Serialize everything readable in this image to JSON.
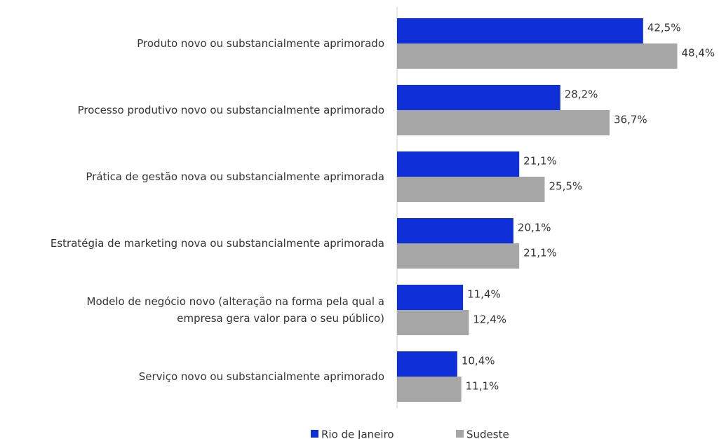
{
  "chart_data": {
    "type": "barh",
    "categories": [
      "Produto novo ou substancialmente aprimorado",
      "Processo produtivo novo ou substancialmente aprimorado",
      "Prática de gestão nova ou substancialmente aprimorada",
      "Estratégia de marketing nova ou substancialmente aprimorada",
      "Modelo de negócio novo (alteração na forma pela qual a\nempresa gera valor para o seu público)",
      "Serviço novo ou substancialmente aprimorado"
    ],
    "series": [
      {
        "name": "Rio de Janeiro",
        "color": "#0f2fd8",
        "values": [
          42.5,
          28.2,
          21.1,
          20.1,
          11.4,
          10.4
        ],
        "value_labels": [
          "42,5%",
          "28,2%",
          "21,1%",
          "20,1%",
          "11,4%",
          "10,4%"
        ]
      },
      {
        "name": "Sudeste",
        "color": "#a6a6a6",
        "values": [
          48.4,
          36.7,
          25.5,
          21.1,
          12.4,
          11.1
        ],
        "value_labels": [
          "48,4%",
          "36,7%",
          "25,5%",
          "21,1%",
          "12,4%",
          "11,1%"
        ]
      }
    ],
    "xlim": [
      0,
      55
    ],
    "legend": "bottom"
  }
}
